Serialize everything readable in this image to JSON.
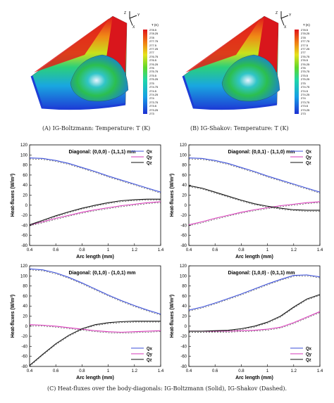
{
  "figures": {
    "top_left": {
      "caption": "(A) IG-Boltzmann: Temperature: T (K)",
      "colorbar_title": "T (K)",
      "colorbar_ticks": [
        "278.5",
        "278.25",
        "278",
        "277.75",
        "277.5",
        "277.25",
        "277",
        "276.75",
        "276.5",
        "276.25",
        "276",
        "275.75",
        "275.5",
        "275.25",
        "275",
        "274.75",
        "274.5",
        "274.25",
        "274",
        "273.75",
        "273.5",
        "273.25",
        "273"
      ],
      "axes_labels": [
        "Z",
        "Y",
        "X"
      ]
    },
    "top_right": {
      "caption": "(B) IG-Shakov: Temperature: T (K)",
      "colorbar_title": "T (K)",
      "colorbar_ticks": [
        "278.5",
        "278.25",
        "278",
        "277.75",
        "277.5",
        "277.25",
        "277",
        "276.75",
        "276.5",
        "276.25",
        "276",
        "275.75",
        "275.5",
        "275.25",
        "275",
        "274.75",
        "274.5",
        "274.25",
        "274",
        "273.75",
        "273.5",
        "273.25",
        "273"
      ],
      "axes_labels": [
        "Z",
        "Y",
        "X"
      ]
    },
    "bottom_caption": "(C) Heat-fluxes over the body-diagonals: IG-Boltzmann (Solid), IG-Shakov (Dashed)."
  },
  "colors": {
    "qx": "#3b4fd8",
    "qy": "#d63ab8",
    "qz": "#111111"
  },
  "chart_data": [
    {
      "type": "line",
      "title": "Diagonal: (0,0,0) - (1,1,1) mm",
      "xlabel": "Arc length (mm)",
      "ylabel": "Heat-fluxes (W/m²)",
      "xlim": [
        0.4,
        1.4
      ],
      "ylim": [
        -80,
        120
      ],
      "xticks": [
        0.4,
        0.6,
        0.8,
        1.0,
        1.2,
        1.4
      ],
      "yticks": [
        -80,
        -60,
        -40,
        -20,
        0,
        20,
        40,
        60,
        80,
        100,
        120
      ],
      "legend_position": "top-right",
      "series": [
        {
          "name": "Qx",
          "x": [
            0.4,
            0.5,
            0.6,
            0.7,
            0.8,
            0.9,
            1.0,
            1.1,
            1.2,
            1.3,
            1.4
          ],
          "values": [
            94,
            93,
            89,
            83,
            75,
            67,
            58,
            50,
            42,
            34,
            26
          ]
        },
        {
          "name": "Qy",
          "x": [
            0.4,
            0.5,
            0.6,
            0.7,
            0.8,
            0.9,
            1.0,
            1.1,
            1.2,
            1.3,
            1.4
          ],
          "values": [
            -39,
            -33,
            -26,
            -20,
            -14,
            -9,
            -5,
            -1,
            2,
            5,
            7
          ]
        },
        {
          "name": "Qz",
          "x": [
            0.4,
            0.5,
            0.6,
            0.7,
            0.8,
            0.9,
            1.0,
            1.1,
            1.2,
            1.3,
            1.4
          ],
          "values": [
            -39,
            -30,
            -21,
            -13,
            -6,
            0,
            5,
            9,
            11,
            12,
            12
          ]
        }
      ]
    },
    {
      "type": "line",
      "title": "Diagonal: (0,0,1) - (1,1,0) mm",
      "xlabel": "Arc length (mm)",
      "ylabel": "Heat-fluxes (W/m²)",
      "xlim": [
        0.4,
        1.4
      ],
      "ylim": [
        -80,
        120
      ],
      "xticks": [
        0.4,
        0.6,
        0.8,
        1.0,
        1.2,
        1.4
      ],
      "yticks": [
        -80,
        -60,
        -40,
        -20,
        0,
        20,
        40,
        60,
        80,
        100,
        120
      ],
      "legend_position": "top-right",
      "series": [
        {
          "name": "Qx",
          "x": [
            0.4,
            0.5,
            0.6,
            0.7,
            0.8,
            0.9,
            1.0,
            1.1,
            1.2,
            1.3,
            1.4
          ],
          "values": [
            94,
            93,
            89,
            83,
            75,
            67,
            58,
            50,
            42,
            34,
            26
          ]
        },
        {
          "name": "Qy",
          "x": [
            0.4,
            0.5,
            0.6,
            0.7,
            0.8,
            0.9,
            1.0,
            1.1,
            1.2,
            1.3,
            1.4
          ],
          "values": [
            -39,
            -33,
            -26,
            -20,
            -14,
            -9,
            -5,
            -1,
            2,
            5,
            7
          ]
        },
        {
          "name": "Qz",
          "x": [
            0.4,
            0.5,
            0.6,
            0.7,
            0.8,
            0.9,
            1.0,
            1.1,
            1.2,
            1.3,
            1.4
          ],
          "values": [
            39,
            34,
            26,
            18,
            10,
            3,
            -2,
            -6,
            -9,
            -10,
            -10
          ]
        }
      ]
    },
    {
      "type": "line",
      "title": "Diagonal: (0,1,0) - (1,0,1) mm",
      "xlabel": "Arc length (mm)",
      "ylabel": "Heat-fluxes (W/m²)",
      "xlim": [
        0.4,
        1.4
      ],
      "ylim": [
        -80,
        120
      ],
      "xticks": [
        0.4,
        0.6,
        0.8,
        1.0,
        1.2,
        1.4
      ],
      "yticks": [
        -80,
        -60,
        -40,
        -20,
        0,
        20,
        40,
        60,
        80,
        100,
        120
      ],
      "legend_position": "bottom-right",
      "series": [
        {
          "name": "Qx",
          "x": [
            0.4,
            0.5,
            0.6,
            0.7,
            0.8,
            0.9,
            1.0,
            1.1,
            1.2,
            1.3,
            1.4
          ],
          "values": [
            114,
            112,
            106,
            97,
            86,
            74,
            62,
            51,
            41,
            32,
            24
          ]
        },
        {
          "name": "Qy",
          "x": [
            0.4,
            0.5,
            0.6,
            0.7,
            0.8,
            0.9,
            1.0,
            1.1,
            1.2,
            1.3,
            1.4
          ],
          "values": [
            3,
            2,
            0,
            -3,
            -6,
            -9,
            -11,
            -12,
            -11,
            -10,
            -9
          ]
        },
        {
          "name": "Qz",
          "x": [
            0.4,
            0.5,
            0.6,
            0.7,
            0.8,
            0.9,
            1.0,
            1.1,
            1.2,
            1.3,
            1.4
          ],
          "values": [
            -78,
            -56,
            -35,
            -18,
            -5,
            3,
            7,
            9,
            10,
            10,
            10
          ]
        }
      ]
    },
    {
      "type": "line",
      "title": "Diagonal: (1,0,0) - (0,1,1) mm",
      "xlabel": "Arc length (mm)",
      "ylabel": "Heat-fluxes (W/m²)",
      "xlim": [
        0.4,
        1.4
      ],
      "ylim": [
        -80,
        120
      ],
      "xticks": [
        0.4,
        0.6,
        0.8,
        1.0,
        1.2,
        1.4
      ],
      "yticks": [
        -80,
        -60,
        -40,
        -20,
        0,
        20,
        40,
        60,
        80,
        100,
        120
      ],
      "legend_position": "bottom-right",
      "series": [
        {
          "name": "Qx",
          "x": [
            0.4,
            0.5,
            0.6,
            0.7,
            0.8,
            0.9,
            1.0,
            1.1,
            1.2,
            1.3,
            1.4
          ],
          "values": [
            32,
            38,
            46,
            55,
            64,
            74,
            84,
            93,
            101,
            102,
            98
          ]
        },
        {
          "name": "Qy",
          "x": [
            0.4,
            0.5,
            0.6,
            0.7,
            0.8,
            0.9,
            1.0,
            1.1,
            1.2,
            1.3,
            1.4
          ],
          "values": [
            -10,
            -10,
            -10,
            -10,
            -9,
            -8,
            -6,
            -2,
            7,
            18,
            29
          ]
        },
        {
          "name": "Qz",
          "x": [
            0.4,
            0.5,
            0.6,
            0.7,
            0.8,
            0.9,
            1.0,
            1.1,
            1.2,
            1.3,
            1.4
          ],
          "values": [
            -10,
            -10,
            -9,
            -8,
            -5,
            0,
            8,
            20,
            38,
            54,
            63
          ]
        }
      ]
    }
  ]
}
